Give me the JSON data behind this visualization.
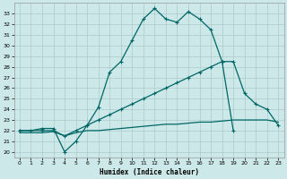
{
  "title": "",
  "xlabel": "Humidex (Indice chaleur)",
  "bg_color": "#cce8e8",
  "line_color": "#006666",
  "grid_color": "#aacccc",
  "xlim": [
    -0.5,
    23.5
  ],
  "ylim": [
    19.5,
    34.0
  ],
  "yticks": [
    20,
    21,
    22,
    23,
    24,
    25,
    26,
    27,
    28,
    29,
    30,
    31,
    32,
    33
  ],
  "xticks": [
    0,
    1,
    2,
    3,
    4,
    5,
    6,
    7,
    8,
    9,
    10,
    11,
    12,
    13,
    14,
    15,
    16,
    17,
    18,
    19,
    20,
    21,
    22,
    23
  ],
  "curve1_x": [
    0,
    1,
    2,
    3,
    4,
    5,
    6,
    7,
    8,
    9,
    10,
    11,
    12,
    13,
    14,
    15,
    16,
    17,
    18,
    19
  ],
  "curve1_y": [
    22.0,
    22.0,
    22.2,
    22.2,
    20.0,
    21.0,
    22.5,
    24.2,
    27.5,
    28.5,
    30.5,
    32.5,
    33.5,
    32.5,
    32.2,
    33.2,
    32.5,
    31.5,
    28.5,
    22.0
  ],
  "curve2_x": [
    0,
    2,
    3,
    4,
    5,
    6,
    7,
    8,
    9,
    10,
    11,
    12,
    13,
    14,
    15,
    16,
    17,
    18,
    19,
    20,
    21,
    22,
    23
  ],
  "curve2_y": [
    22.0,
    22.0,
    22.0,
    21.5,
    22.0,
    22.5,
    23.0,
    23.5,
    24.0,
    24.5,
    25.0,
    25.5,
    26.0,
    26.5,
    27.0,
    27.5,
    28.0,
    28.5,
    28.5,
    25.5,
    24.5,
    24.0,
    22.5
  ],
  "curve3_x": [
    0,
    2,
    3,
    4,
    5,
    6,
    7,
    8,
    9,
    10,
    11,
    12,
    13,
    14,
    15,
    16,
    17,
    18,
    19,
    20,
    21,
    22,
    23
  ],
  "curve3_y": [
    21.8,
    21.8,
    21.9,
    21.5,
    21.8,
    22.0,
    22.0,
    22.1,
    22.2,
    22.3,
    22.4,
    22.5,
    22.6,
    22.6,
    22.7,
    22.8,
    22.8,
    22.9,
    23.0,
    23.0,
    23.0,
    23.0,
    22.8
  ]
}
